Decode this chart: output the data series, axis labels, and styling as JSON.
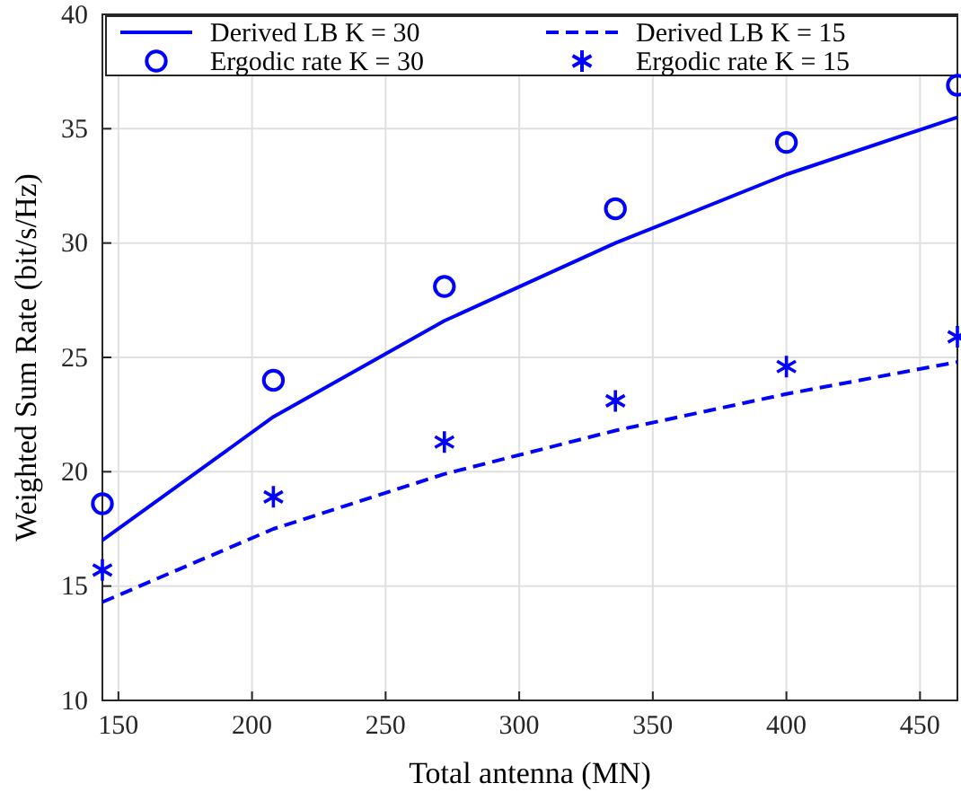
{
  "chart_data": {
    "type": "line",
    "xlabel": "Total antenna (MN)",
    "ylabel": "Weighted Sum Rate (bit/s/Hz)",
    "x": [
      144,
      208,
      272,
      336,
      400,
      464
    ],
    "xlim": [
      144,
      464
    ],
    "xticks": [
      150,
      200,
      250,
      300,
      350,
      400,
      450
    ],
    "ylim": [
      10,
      40
    ],
    "yticks": [
      10,
      15,
      20,
      25,
      30,
      35,
      40
    ],
    "grid": true,
    "legend": "top",
    "series": [
      {
        "name": "Derived LB K = 30",
        "line_style": "solid",
        "marker": "none",
        "color": "#0000ff",
        "values": [
          17.0,
          22.4,
          26.6,
          30.0,
          33.0,
          35.5
        ]
      },
      {
        "name": "Derived LB K = 15",
        "line_style": "dashed",
        "marker": "none",
        "color": "#0000ff",
        "values": [
          14.3,
          17.5,
          19.9,
          21.8,
          23.4,
          24.8
        ]
      },
      {
        "name": "Ergodic rate K = 30",
        "type": "scatter",
        "marker": "circle",
        "color": "#0000ff",
        "values": [
          18.6,
          24.0,
          28.1,
          31.5,
          34.4,
          36.9
        ]
      },
      {
        "name": "Ergodic rate K = 15",
        "type": "scatter",
        "marker": "cross",
        "color": "#0000ff",
        "values": [
          15.7,
          18.9,
          21.3,
          23.1,
          24.6,
          25.9
        ]
      }
    ]
  }
}
